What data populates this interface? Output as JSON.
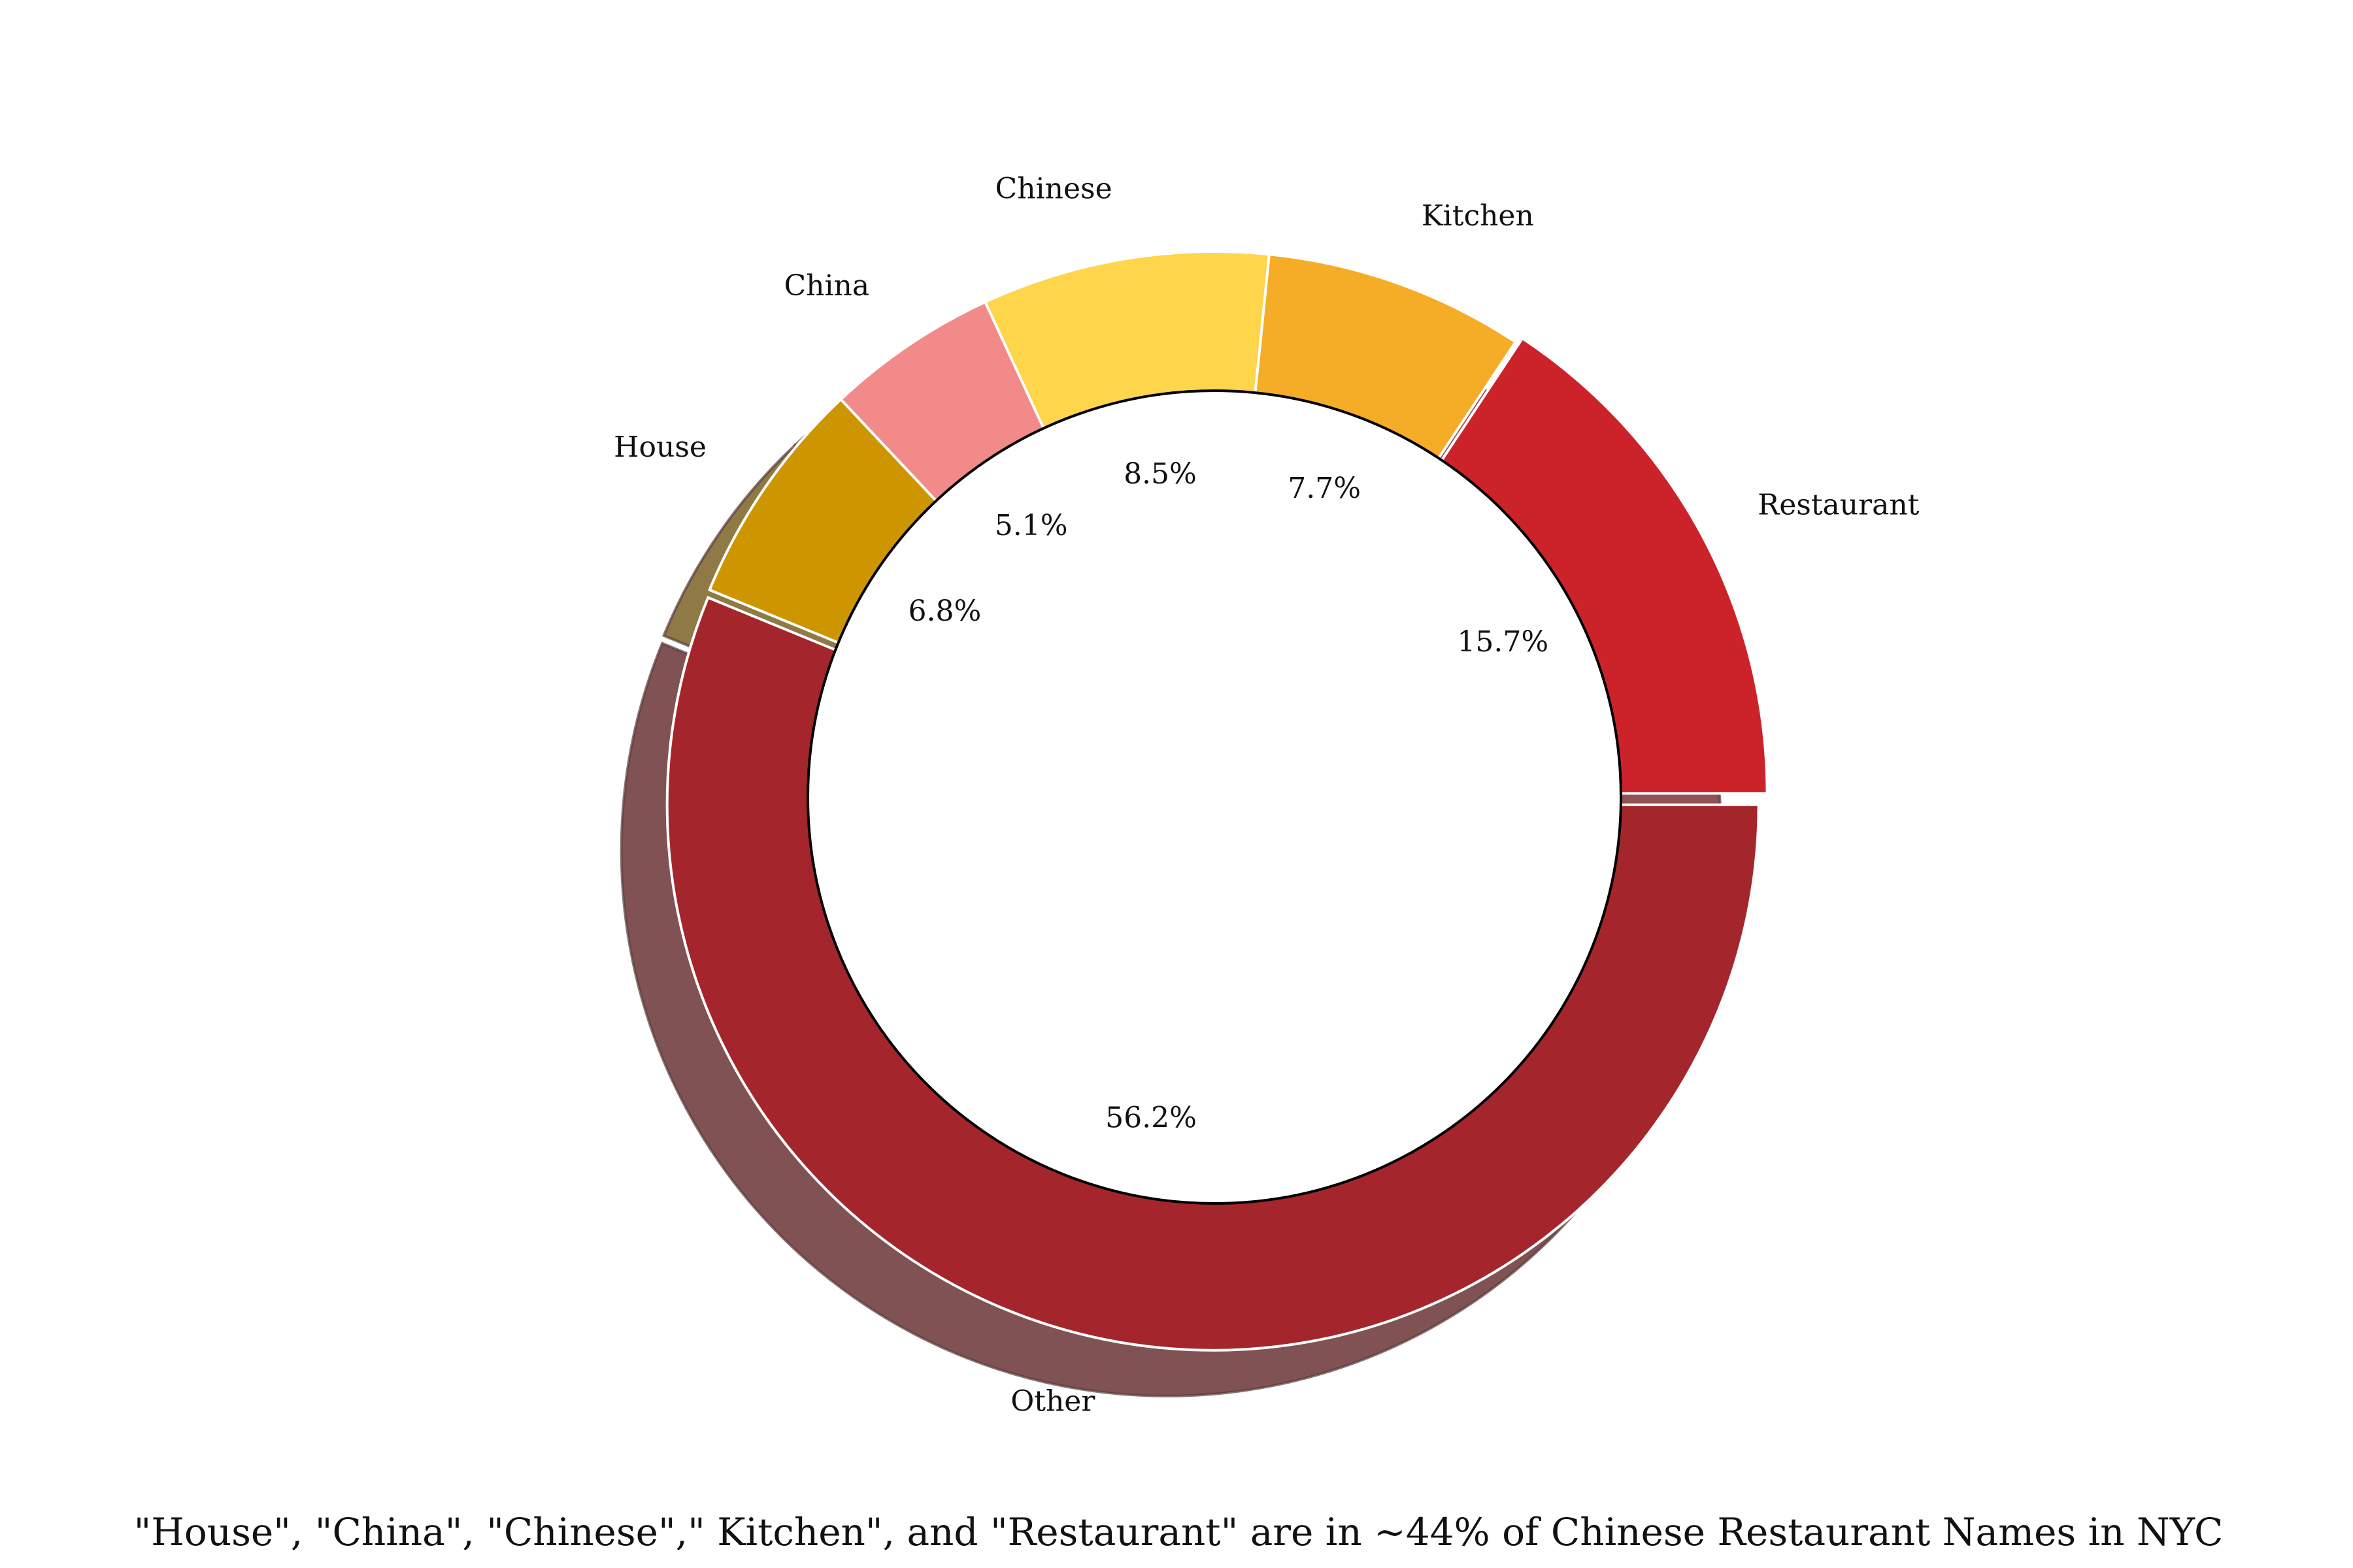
{
  "chart_data": {
    "type": "pie",
    "style": "donut",
    "title": "\"House\", \"China\", \"Chinese\",\" Kitchen\", and \"Restaurant\" are in ~44% of Chinese Restaurant Names in NYC",
    "slices": [
      {
        "label": "Restaurant",
        "pct_label": "15.7%",
        "value": 15.7,
        "color": "#cc232a"
      },
      {
        "label": "Kitchen",
        "pct_label": "7.7%",
        "value": 7.7,
        "color": "#f5ac27"
      },
      {
        "label": "Chinese",
        "pct_label": "8.5%",
        "value": 8.5,
        "color": "#fed54b"
      },
      {
        "label": "China",
        "pct_label": "5.1%",
        "value": 5.1,
        "color": "#f28a8a"
      },
      {
        "label": "House",
        "pct_label": "6.8%",
        "value": 6.8,
        "color": "#cd9600"
      },
      {
        "label": "Other",
        "pct_label": "56.2%",
        "value": 56.2,
        "color": "#a4262c"
      }
    ],
    "start_angle_deg": 0,
    "direction": "counterclockwise",
    "exploded": [
      "Restaurant",
      "Other"
    ],
    "shadow": true,
    "legend": "none"
  }
}
